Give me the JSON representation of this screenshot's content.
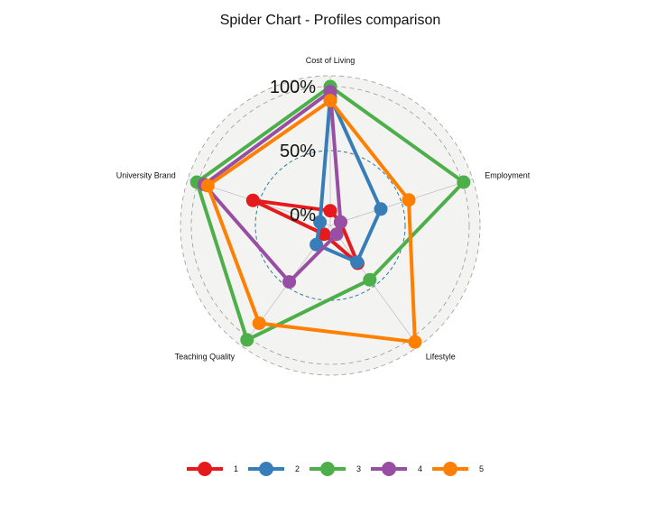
{
  "chart_data": {
    "type": "radar",
    "title": "Spider Chart - Profiles comparison",
    "axes": [
      "Cost of Living",
      "Employment",
      "Lifestyle",
      "Teaching Quality",
      "University Brand"
    ],
    "grid_labels": [
      "0%",
      "50%",
      "100%"
    ],
    "range": [
      0,
      1
    ],
    "legend_position": "bottom",
    "series": [
      {
        "name": "1",
        "color": "#E41A1C",
        "values": [
          0.03,
          0.0,
          0.28,
          0.0,
          0.55
        ]
      },
      {
        "name": "2",
        "color": "#377EB8",
        "values": [
          0.92,
          0.33,
          0.27,
          0.1,
          0.0
        ]
      },
      {
        "name": "3",
        "color": "#4DAF4A",
        "values": [
          1.0,
          1.01,
          0.44,
          1.02,
          1.01
        ]
      },
      {
        "name": "4",
        "color": "#984EA3",
        "values": [
          0.96,
          0.0,
          0.0,
          0.46,
          0.95
        ]
      },
      {
        "name": "5",
        "color": "#FF7F00",
        "values": [
          0.89,
          0.56,
          1.04,
          0.86,
          0.92
        ]
      }
    ]
  }
}
